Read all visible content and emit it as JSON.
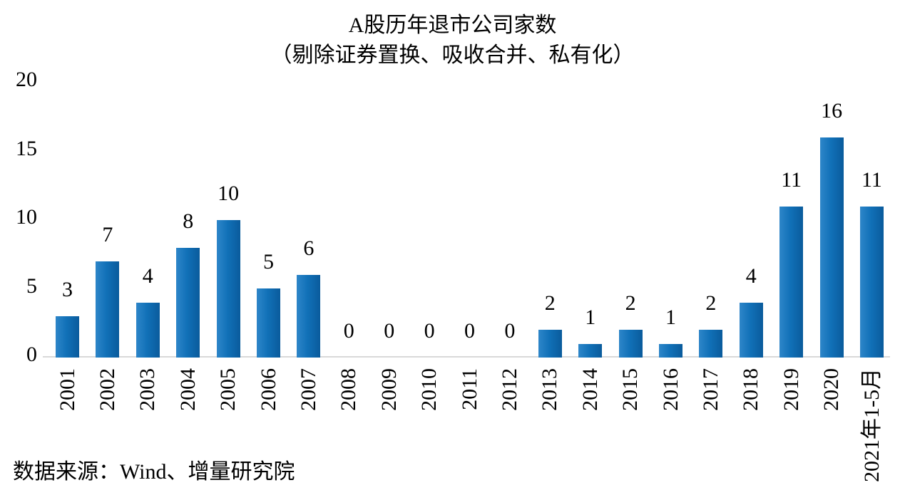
{
  "title": "A股历年退市公司家数",
  "subtitle": "（剔除证券置换、吸收合并、私有化）",
  "source": "数据来源：Wind、增量研究院",
  "chart_data": {
    "type": "bar",
    "title": "A股历年退市公司家数",
    "subtitle": "（剔除证券置换、吸收合并、私有化）",
    "categories": [
      "2001",
      "2002",
      "2003",
      "2004",
      "2005",
      "2006",
      "2007",
      "2008",
      "2009",
      "2010",
      "2011",
      "2012",
      "2013",
      "2014",
      "2015",
      "2016",
      "2017",
      "2018",
      "2019",
      "2020",
      "2021年1-5月"
    ],
    "values": [
      3,
      7,
      4,
      8,
      10,
      5,
      6,
      0,
      0,
      0,
      0,
      0,
      2,
      1,
      2,
      1,
      2,
      4,
      11,
      16,
      11
    ],
    "xlabel": "",
    "ylabel": "",
    "ylim": [
      0,
      20
    ],
    "yticks": [
      0,
      5,
      10,
      15,
      20
    ],
    "grid": false,
    "legend_position": "none",
    "data_labels": true,
    "x_label_rotation_deg": -90,
    "bar_gradient_left": "#2E86C9",
    "bar_color": "#1171B8",
    "bar_gradient_right": "#0A5B9C",
    "axis_line_color": "#D9D9D9",
    "text_color": "#000000",
    "background_color": "#FFFFFF"
  }
}
